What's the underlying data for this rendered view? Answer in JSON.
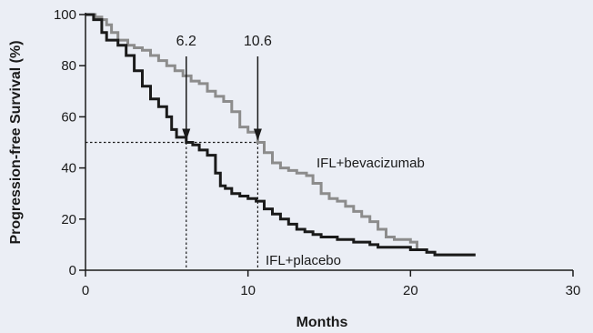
{
  "chart_data": {
    "type": "line",
    "subtype": "step",
    "xlabel": "Months",
    "ylabel": "Progression-free Survival (%)",
    "xlim": [
      0,
      30
    ],
    "ylim": [
      0,
      100
    ],
    "xticks": [
      0,
      10,
      20,
      30
    ],
    "yticks": [
      0,
      20,
      40,
      60,
      80,
      100
    ],
    "grid": false,
    "reference_level": 50,
    "annotations": [
      {
        "label": "6.2",
        "x": 6.2
      },
      {
        "label": "10.6",
        "x": 10.6
      }
    ],
    "series": [
      {
        "name": "IFL+bevacizumab",
        "color": "#8c8c8c",
        "points": [
          [
            0,
            100
          ],
          [
            0.6,
            99
          ],
          [
            1.0,
            98
          ],
          [
            1.3,
            96
          ],
          [
            1.6,
            93
          ],
          [
            2.0,
            90
          ],
          [
            2.6,
            88
          ],
          [
            3.0,
            87
          ],
          [
            3.5,
            86
          ],
          [
            4.0,
            84
          ],
          [
            4.5,
            82
          ],
          [
            5.0,
            80
          ],
          [
            5.5,
            78
          ],
          [
            6.0,
            76
          ],
          [
            6.5,
            74
          ],
          [
            7.0,
            73
          ],
          [
            7.5,
            70
          ],
          [
            8.0,
            68
          ],
          [
            8.5,
            66
          ],
          [
            9.0,
            62
          ],
          [
            9.5,
            56
          ],
          [
            10.0,
            54
          ],
          [
            10.6,
            50
          ],
          [
            11.0,
            46
          ],
          [
            11.5,
            42
          ],
          [
            12.0,
            40
          ],
          [
            12.5,
            39
          ],
          [
            13.0,
            38
          ],
          [
            13.6,
            37
          ],
          [
            14.0,
            34
          ],
          [
            14.5,
            30
          ],
          [
            15.0,
            28
          ],
          [
            15.5,
            27
          ],
          [
            16.0,
            25
          ],
          [
            16.5,
            23
          ],
          [
            17.0,
            21
          ],
          [
            17.5,
            19
          ],
          [
            18.0,
            16
          ],
          [
            18.5,
            13
          ],
          [
            19.0,
            12
          ],
          [
            20.0,
            11
          ],
          [
            20.4,
            8
          ],
          [
            21.0,
            7
          ],
          [
            21.5,
            6
          ],
          [
            24.0,
            6
          ]
        ]
      },
      {
        "name": "IFL+placebo",
        "color": "#1a1a1a",
        "points": [
          [
            0,
            100
          ],
          [
            0.5,
            98
          ],
          [
            1.0,
            93
          ],
          [
            1.3,
            90
          ],
          [
            2.0,
            88
          ],
          [
            2.5,
            84
          ],
          [
            3.0,
            78
          ],
          [
            3.5,
            72
          ],
          [
            4.0,
            67
          ],
          [
            4.5,
            64
          ],
          [
            5.0,
            60
          ],
          [
            5.3,
            55
          ],
          [
            5.6,
            52
          ],
          [
            6.2,
            50
          ],
          [
            6.6,
            49
          ],
          [
            7.0,
            47
          ],
          [
            7.5,
            45
          ],
          [
            8.0,
            38
          ],
          [
            8.3,
            33
          ],
          [
            8.6,
            32
          ],
          [
            9.0,
            30
          ],
          [
            9.5,
            29
          ],
          [
            10.0,
            28
          ],
          [
            10.5,
            27
          ],
          [
            11.0,
            24
          ],
          [
            11.5,
            22
          ],
          [
            12.0,
            20
          ],
          [
            12.5,
            18
          ],
          [
            13.0,
            16
          ],
          [
            13.5,
            15
          ],
          [
            14.0,
            14
          ],
          [
            14.5,
            13
          ],
          [
            15.0,
            13
          ],
          [
            15.5,
            12
          ],
          [
            16.5,
            11
          ],
          [
            17.5,
            10
          ],
          [
            18.0,
            9
          ],
          [
            18.5,
            9
          ],
          [
            19.0,
            9
          ],
          [
            20.0,
            8
          ],
          [
            21.0,
            7
          ],
          [
            21.5,
            6
          ],
          [
            24.0,
            6
          ]
        ]
      }
    ]
  }
}
